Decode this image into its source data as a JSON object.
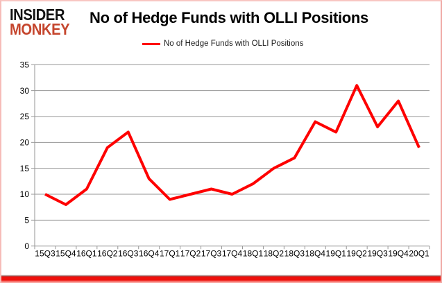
{
  "logo": {
    "line1": "INSIDER",
    "line2": "MONKEY",
    "color1": "#121212",
    "color2": "#c5462e"
  },
  "header": {
    "title": "No of Hedge Funds with OLLI Positions"
  },
  "legend": {
    "label": "No of Hedge Funds with OLLI Positions",
    "line_color": "#fe0000"
  },
  "chart_data": {
    "type": "line",
    "title": "No of Hedge Funds with OLLI Positions",
    "categories": [
      "15Q3",
      "15Q4",
      "16Q1",
      "16Q2",
      "16Q3",
      "16Q4",
      "17Q1",
      "17Q2",
      "17Q3",
      "17Q4",
      "18Q1",
      "18Q2",
      "18Q3",
      "18Q4",
      "19Q1",
      "19Q2",
      "19Q3",
      "19Q4",
      "20Q1"
    ],
    "series": [
      {
        "name": "No of Hedge Funds with OLLI Positions",
        "color": "#fe0000",
        "values": [
          10,
          8,
          11,
          19,
          22,
          13,
          9,
          10,
          11,
          10,
          12,
          15,
          17,
          24,
          22,
          31,
          23,
          28,
          19
        ]
      }
    ],
    "xlabel": "",
    "ylabel": "",
    "ylim": [
      0,
      35
    ],
    "yticks": [
      0,
      5,
      10,
      15,
      20,
      25,
      30,
      35
    ],
    "grid": true,
    "gridline_color": "#969696",
    "axis_color": "#969696",
    "legend_position": "top"
  }
}
